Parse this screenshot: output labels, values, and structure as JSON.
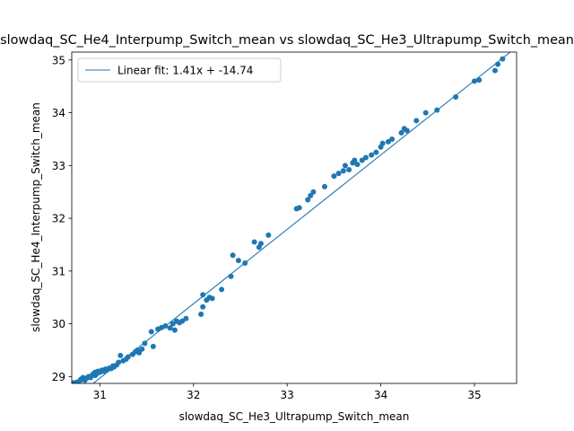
{
  "chart_data": {
    "type": "scatter",
    "title": "slowdaq_SC_He4_Interpump_Switch_mean vs slowdaq_SC_He3_Ultrapump_Switch_mean",
    "xlabel": "slowdaq_SC_He3_Ultrapump_Switch_mean",
    "ylabel": "slowdaq_SC_He4_Interpump_Switch_mean",
    "xlim": [
      30.7,
      35.45
    ],
    "ylim": [
      28.87,
      35.15
    ],
    "xticks": [
      31,
      32,
      33,
      34,
      35
    ],
    "yticks": [
      29,
      30,
      31,
      32,
      33,
      34,
      35
    ],
    "grid": false,
    "legend": {
      "placement": "upper-left",
      "entries": [
        "Linear fit: 1.41x + -14.74"
      ]
    },
    "fit": {
      "slope": 1.41,
      "intercept": -14.74
    },
    "colors": {
      "points": "#1f77b4",
      "fit_line": "#1f77b4"
    },
    "points": [
      [
        30.72,
        28.88
      ],
      [
        30.75,
        28.89
      ],
      [
        30.77,
        28.9
      ],
      [
        30.79,
        28.93
      ],
      [
        30.8,
        28.95
      ],
      [
        30.82,
        28.98
      ],
      [
        30.84,
        28.93
      ],
      [
        30.86,
        28.97
      ],
      [
        30.88,
        29.0
      ],
      [
        30.9,
        28.98
      ],
      [
        30.92,
        29.03
      ],
      [
        30.93,
        29.05
      ],
      [
        30.95,
        29.02
      ],
      [
        30.95,
        29.08
      ],
      [
        30.97,
        29.06
      ],
      [
        30.98,
        29.1
      ],
      [
        31.0,
        29.08
      ],
      [
        31.02,
        29.12
      ],
      [
        31.04,
        29.1
      ],
      [
        31.06,
        29.14
      ],
      [
        31.08,
        29.13
      ],
      [
        31.1,
        29.16
      ],
      [
        31.12,
        29.15
      ],
      [
        31.14,
        29.2
      ],
      [
        31.15,
        29.18
      ],
      [
        31.18,
        29.22
      ],
      [
        31.2,
        29.27
      ],
      [
        31.22,
        29.4
      ],
      [
        31.25,
        29.3
      ],
      [
        31.28,
        29.33
      ],
      [
        31.3,
        29.37
      ],
      [
        31.35,
        29.42
      ],
      [
        31.38,
        29.47
      ],
      [
        31.4,
        29.5
      ],
      [
        31.42,
        29.45
      ],
      [
        31.45,
        29.52
      ],
      [
        31.48,
        29.63
      ],
      [
        31.55,
        29.85
      ],
      [
        31.57,
        29.57
      ],
      [
        31.62,
        29.9
      ],
      [
        31.66,
        29.93
      ],
      [
        31.7,
        29.96
      ],
      [
        31.75,
        29.92
      ],
      [
        31.78,
        30.0
      ],
      [
        31.8,
        29.88
      ],
      [
        31.82,
        30.05
      ],
      [
        31.85,
        30.02
      ],
      [
        31.88,
        30.05
      ],
      [
        31.92,
        30.1
      ],
      [
        32.08,
        30.18
      ],
      [
        32.1,
        30.32
      ],
      [
        32.1,
        30.55
      ],
      [
        32.14,
        30.45
      ],
      [
        32.17,
        30.5
      ],
      [
        32.2,
        30.48
      ],
      [
        32.3,
        30.65
      ],
      [
        32.4,
        30.9
      ],
      [
        32.42,
        31.3
      ],
      [
        32.48,
        31.2
      ],
      [
        32.55,
        31.15
      ],
      [
        32.65,
        31.55
      ],
      [
        32.7,
        31.45
      ],
      [
        32.72,
        31.52
      ],
      [
        32.8,
        31.68
      ],
      [
        33.1,
        32.18
      ],
      [
        33.13,
        32.2
      ],
      [
        33.22,
        32.35
      ],
      [
        33.25,
        32.43
      ],
      [
        33.28,
        32.5
      ],
      [
        33.4,
        32.6
      ],
      [
        33.5,
        32.8
      ],
      [
        33.55,
        32.85
      ],
      [
        33.6,
        32.9
      ],
      [
        33.62,
        33.0
      ],
      [
        33.66,
        32.92
      ],
      [
        33.7,
        33.05
      ],
      [
        33.72,
        33.1
      ],
      [
        33.75,
        33.02
      ],
      [
        33.8,
        33.1
      ],
      [
        33.84,
        33.15
      ],
      [
        33.9,
        33.2
      ],
      [
        33.95,
        33.25
      ],
      [
        34.0,
        33.35
      ],
      [
        34.02,
        33.42
      ],
      [
        34.08,
        33.45
      ],
      [
        34.12,
        33.5
      ],
      [
        34.22,
        33.62
      ],
      [
        34.25,
        33.7
      ],
      [
        34.28,
        33.66
      ],
      [
        34.38,
        33.85
      ],
      [
        34.48,
        34.0
      ],
      [
        34.6,
        34.05
      ],
      [
        34.8,
        34.3
      ],
      [
        35.0,
        34.6
      ],
      [
        35.05,
        34.62
      ],
      [
        35.22,
        34.8
      ],
      [
        35.25,
        34.92
      ],
      [
        35.3,
        35.02
      ]
    ]
  }
}
